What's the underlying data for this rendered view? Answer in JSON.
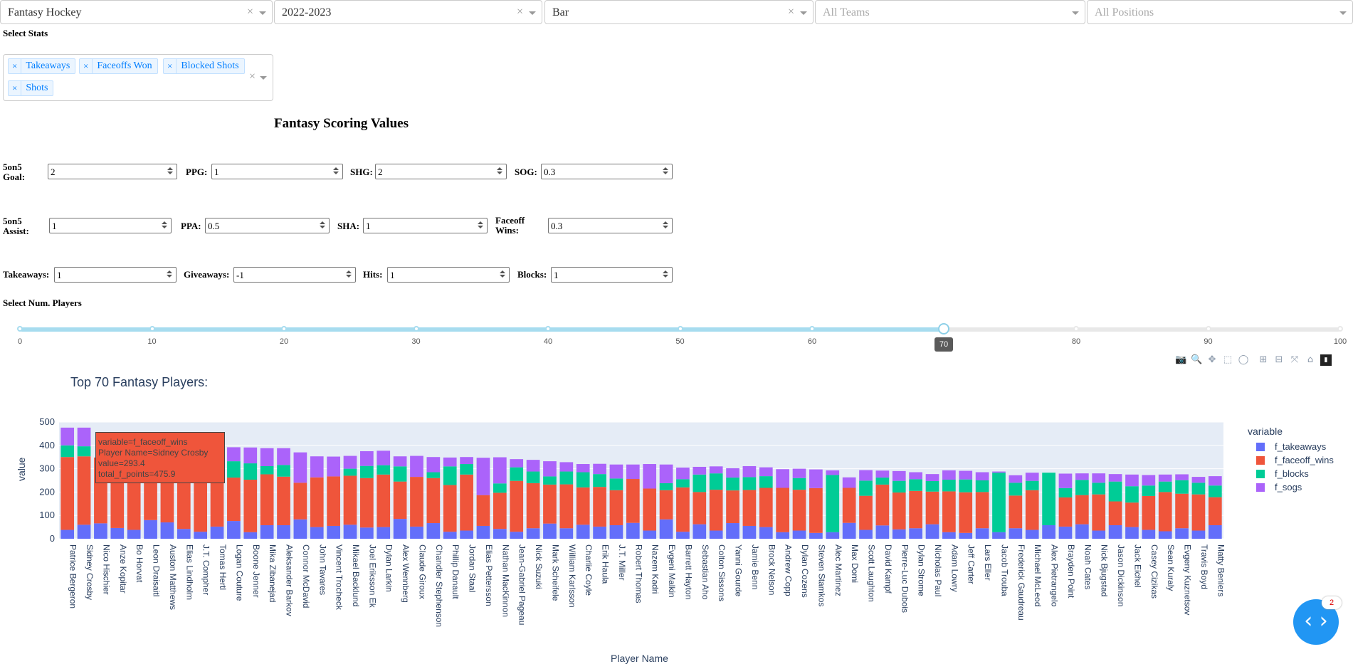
{
  "dropdowns": [
    {
      "value": "Fantasy Hockey",
      "placeholder": false
    },
    {
      "value": "2022-2023",
      "placeholder": false
    },
    {
      "value": "Bar",
      "placeholder": false
    },
    {
      "value": "All Teams",
      "placeholder": true
    },
    {
      "value": "All Positions",
      "placeholder": true
    }
  ],
  "select_stats": {
    "label": "Select Stats",
    "tags": [
      "Takeaways",
      "Faceoffs Won",
      "Blocked Shots",
      "Shots"
    ],
    "remove_glyph": "×",
    "clear_glyph": "×"
  },
  "scoring": {
    "title": "Fantasy Scoring Values",
    "fields": [
      {
        "label": "5on5 Goal:",
        "value": "2"
      },
      {
        "label": "PPG:",
        "value": "1"
      },
      {
        "label": "SHG:",
        "value": "2"
      },
      {
        "label": "SOG:",
        "value": "0.3"
      },
      {
        "label": "5on5 Assist:",
        "value": "1"
      },
      {
        "label": "PPA:",
        "value": "0.5"
      },
      {
        "label": "SHA:",
        "value": "1"
      },
      {
        "label": "Faceoff Wins:",
        "value": "0.3"
      },
      {
        "label": "Takeaways:",
        "value": "1"
      },
      {
        "label": "Giveaways:",
        "value": "-1"
      },
      {
        "label": "Hits:",
        "value": "1"
      },
      {
        "label": "Blocks:",
        "value": "1"
      }
    ]
  },
  "slider": {
    "label": "Select Num. Players",
    "min": 0,
    "max": 100,
    "value": 70,
    "marks": [
      "0",
      "10",
      "20",
      "30",
      "40",
      "50",
      "60",
      "70",
      "80",
      "90",
      "100"
    ],
    "value_label": "70"
  },
  "modebar_icons": [
    "camera-icon",
    "zoom-icon",
    "pan-icon",
    "box-select-icon",
    "lasso-icon",
    "zoom-in-icon",
    "zoom-out-icon",
    "autoscale-icon",
    "reset-axes-icon",
    "plotly-logo-icon"
  ],
  "tooltip": {
    "lines": [
      "variable=f_faceoff_wins",
      "Player Name=Sidney Crosby",
      "value=293.4",
      "total_f_points=475.9"
    ]
  },
  "fab": {
    "glyph": "‹ ›",
    "badge": "2"
  },
  "colors": {
    "f_takeaways": "#636EFA",
    "f_faceoff_wins": "#EF553B",
    "f_blocks": "#00CC96",
    "f_sogs": "#AB63FA",
    "plot_bg": "#E5ECF6"
  },
  "chart_data": {
    "type": "bar",
    "stacked": true,
    "title": "Top 70 Fantasy Players:",
    "xlabel": "Player Name",
    "ylabel": "value",
    "ylim": [
      0,
      500
    ],
    "yticks": [
      0,
      100,
      200,
      300,
      400,
      500
    ],
    "legend_title": "variable",
    "legend_position": "right",
    "categories": [
      "Patrice Bergeron",
      "Sidney Crosby",
      "Nico Hischier",
      "Anze Kopitar",
      "Bo Horvat",
      "Leon Draisaitl",
      "Auston Matthews",
      "Elias Lindholm",
      "J.T. Compher",
      "Tomas Hertl",
      "Logan Couture",
      "Boone Jenner",
      "Mika Zibanejad",
      "Aleksander Barkov",
      "Connor McDavid",
      "John Tavares",
      "Vincent Trocheck",
      "Mikael Backlund",
      "Joel Eriksson Ek",
      "Dylan Larkin",
      "Alex Wennberg",
      "Claude Giroux",
      "Chandler Stephenson",
      "Phillip Danault",
      "Jordan Staal",
      "Elias Pettersson",
      "Nathan MacKinnon",
      "Jean-Gabriel Pageau",
      "Nick Suzuki",
      "Mark Scheifele",
      "William Karlsson",
      "Charlie Coyle",
      "Erik Haula",
      "J.T. Miller",
      "Robert Thomas",
      "Nazem Kadri",
      "Evgeni Malkin",
      "Barrett Hayton",
      "Sebastian Aho",
      "Colton Sissons",
      "Yanni Gourde",
      "Jamie Benn",
      "Brock Nelson",
      "Andrew Copp",
      "Dylan Cozens",
      "Steven Stamkos",
      "Alec Martinez",
      "Max Domi",
      "Scott Laughton",
      "David Kampf",
      "Pierre-Luc Dubois",
      "Dylan Strome",
      "Nicholas Paul",
      "Adam Lowry",
      "Jeff Carter",
      "Lars Eller",
      "Jacob Trouba",
      "Frederick Gaudreau",
      "Michael McLeod",
      "Alex Pietrangelo",
      "Brayden Point",
      "Noah Cates",
      "Nick Bjugstad",
      "Jason Dickinson",
      "Jack Eichel",
      "Casey Cizikas",
      "Sean Kuraly",
      "Evgeny Kuznetsov",
      "Travis Boyd",
      "Matty Beniers"
    ],
    "series": [
      {
        "name": "f_takeaways",
        "values": [
          38,
          60,
          66,
          46,
          38,
          80,
          70,
          42,
          30,
          52,
          76,
          28,
          58,
          58,
          83,
          50,
          55,
          60,
          48,
          50,
          85,
          52,
          67,
          30,
          35,
          55,
          42,
          30,
          45,
          65,
          45,
          60,
          52,
          58,
          68,
          35,
          83,
          30,
          62,
          35,
          67,
          55,
          50,
          28,
          35,
          25,
          28,
          68,
          38,
          57,
          40,
          45,
          62,
          28,
          25,
          45,
          28,
          45,
          38,
          58,
          52,
          62,
          35,
          58,
          50,
          38,
          32,
          45,
          35,
          58
        ]
      },
      {
        "name": "f_faceoff_wins",
        "values": [
          312,
          293,
          282,
          315,
          276,
          226,
          178,
          258,
          271,
          228,
          186,
          225,
          218,
          208,
          157,
          213,
          212,
          210,
          212,
          225,
          160,
          213,
          193,
          200,
          240,
          132,
          155,
          218,
          193,
          167,
          188,
          160,
          170,
          150,
          188,
          180,
          125,
          190,
          138,
          175,
          140,
          154,
          168,
          190,
          175,
          192,
          0,
          150,
          146,
          175,
          158,
          160,
          140,
          175,
          174,
          155,
          0,
          140,
          170,
          0,
          125,
          125,
          155,
          102,
          105,
          145,
          168,
          148,
          155,
          120
        ]
      },
      {
        "name": "f_blocks",
        "values": [
          50,
          43,
          0,
          0,
          0,
          0,
          0,
          0,
          0,
          0,
          70,
          70,
          35,
          50,
          0,
          0,
          0,
          30,
          52,
          40,
          65,
          0,
          25,
          80,
          45,
          0,
          40,
          58,
          50,
          35,
          55,
          65,
          55,
          50,
          0,
          0,
          30,
          35,
          75,
          70,
          55,
          55,
          50,
          0,
          50,
          0,
          245,
          0,
          65,
          30,
          50,
          50,
          45,
          50,
          55,
          50,
          255,
          55,
          40,
          225,
          40,
          65,
          50,
          85,
          70,
          45,
          45,
          58,
          50,
          50
        ]
      },
      {
        "name": "f_sogs",
        "values": [
          76,
          80,
          0,
          0,
          0,
          0,
          0,
          0,
          0,
          0,
          60,
          68,
          77,
          72,
          130,
          90,
          85,
          55,
          63,
          62,
          43,
          90,
          65,
          38,
          30,
          160,
          112,
          35,
          50,
          65,
          40,
          35,
          44,
          60,
          62,
          105,
          80,
          50,
          33,
          30,
          40,
          47,
          38,
          80,
          40,
          80,
          20,
          45,
          45,
          30,
          42,
          30,
          30,
          40,
          37,
          35,
          5,
          32,
          35,
          0,
          62,
          28,
          40,
          32,
          50,
          45,
          30,
          25,
          25,
          40
        ]
      }
    ]
  }
}
